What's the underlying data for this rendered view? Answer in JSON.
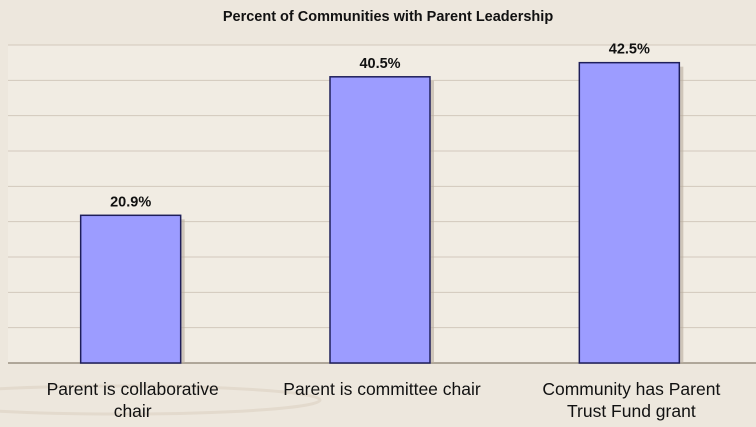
{
  "chart_data": {
    "type": "bar",
    "title": "Percent of Communities with Parent Leadership",
    "categories": [
      [
        "Parent is collaborative",
        "chair"
      ],
      [
        "Parent is committee chair"
      ],
      [
        "Community has Parent",
        "Trust Fund grant"
      ]
    ],
    "values": [
      20.9,
      40.5,
      42.5
    ],
    "data_labels": [
      "20.9%",
      "40.5%",
      "42.5%"
    ],
    "ylim": [
      0,
      45
    ],
    "grid": true,
    "bar_color": "#9c9cff",
    "bar_edge_color": "#1e1e5a",
    "plot_background": "#f1ece3",
    "gridline_color": "#d2c9bc"
  }
}
